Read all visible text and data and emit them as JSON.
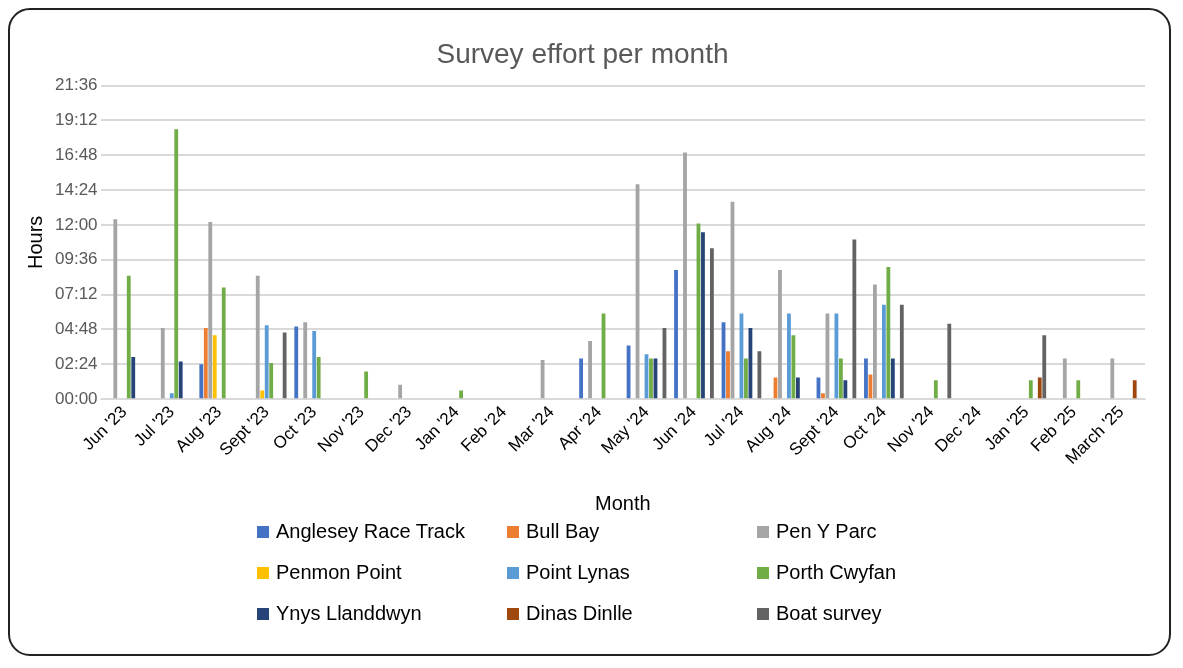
{
  "chart_data": {
    "type": "bar",
    "title": "Survey effort per month",
    "xlabel": "Month",
    "ylabel": "Hours",
    "categories": [
      "Jun '23",
      "Jul '23",
      "Aug '23",
      "Sept '23",
      "Oct '23",
      "Nov '23",
      "Dec '23",
      "Jan '24",
      "Feb '24",
      "Mar '24",
      "Apr '24",
      "May '24",
      "Jun '24",
      "Jul '24",
      "Aug '24",
      "Sept '24",
      "Oct '24",
      "Nov '24",
      "Dec '24",
      "Jan '25",
      "Feb '25",
      "March '25"
    ],
    "ylim": [
      0,
      21.6
    ],
    "yticks": [
      {
        "value": 0,
        "label": "00:00"
      },
      {
        "value": 2.4,
        "label": "02:24"
      },
      {
        "value": 4.8,
        "label": "04:48"
      },
      {
        "value": 7.2,
        "label": "07:12"
      },
      {
        "value": 9.6,
        "label": "09:36"
      },
      {
        "value": 12,
        "label": "12:00"
      },
      {
        "value": 14.4,
        "label": "14:24"
      },
      {
        "value": 16.8,
        "label": "16:48"
      },
      {
        "value": 19.2,
        "label": "19:12"
      },
      {
        "value": 21.6,
        "label": "21:36"
      }
    ],
    "grid": "y",
    "legend": "bottom",
    "series": [
      {
        "name": "Anglesey Race Track",
        "color": "#4472c4",
        "values": [
          null,
          null,
          2.4,
          null,
          5.0,
          null,
          null,
          null,
          null,
          null,
          2.8,
          3.7,
          8.9,
          5.3,
          null,
          1.5,
          2.8,
          null,
          null,
          null,
          null,
          null
        ]
      },
      {
        "name": "Bull Bay",
        "color": "#ed7d31",
        "values": [
          null,
          null,
          4.9,
          null,
          null,
          null,
          null,
          null,
          null,
          null,
          null,
          null,
          null,
          3.3,
          1.5,
          0.4,
          1.7,
          null,
          null,
          null,
          null,
          null
        ]
      },
      {
        "name": "Pen Y Parc",
        "color": "#a5a5a5",
        "values": [
          12.4,
          4.9,
          12.2,
          8.5,
          5.3,
          null,
          1.0,
          null,
          null,
          2.7,
          4.0,
          14.8,
          17.0,
          13.6,
          8.9,
          5.9,
          7.9,
          null,
          null,
          null,
          2.8,
          2.8
        ]
      },
      {
        "name": "Penmon Point",
        "color": "#ffc000",
        "values": [
          null,
          null,
          4.4,
          0.6,
          null,
          null,
          null,
          null,
          null,
          null,
          null,
          null,
          null,
          null,
          null,
          null,
          null,
          null,
          null,
          null,
          null,
          null
        ]
      },
      {
        "name": "Point Lynas",
        "color": "#5b9bd5",
        "values": [
          null,
          0.4,
          null,
          5.1,
          4.7,
          null,
          null,
          null,
          null,
          null,
          null,
          3.1,
          null,
          5.9,
          5.9,
          5.9,
          6.5,
          null,
          null,
          null,
          null,
          null
        ]
      },
      {
        "name": "Porth Cwyfan",
        "color": "#70ad47",
        "values": [
          8.5,
          18.6,
          7.7,
          2.5,
          2.9,
          1.9,
          null,
          0.6,
          null,
          null,
          5.9,
          2.8,
          12.1,
          2.8,
          4.4,
          2.8,
          9.1,
          1.3,
          null,
          1.3,
          1.3,
          null
        ]
      },
      {
        "name": "Ynys Llanddwyn",
        "color": "#264478",
        "values": [
          2.9,
          2.6,
          null,
          null,
          null,
          null,
          null,
          null,
          null,
          null,
          null,
          2.8,
          11.5,
          4.9,
          1.5,
          1.3,
          2.8,
          null,
          null,
          null,
          null,
          null
        ]
      },
      {
        "name": "Dinas Dinlle",
        "color": "#9e480e",
        "values": [
          null,
          null,
          null,
          null,
          null,
          null,
          null,
          null,
          null,
          null,
          null,
          null,
          null,
          null,
          null,
          null,
          null,
          null,
          null,
          1.5,
          null,
          1.3
        ]
      },
      {
        "name": "Boat survey",
        "color": "#636363",
        "values": [
          null,
          null,
          null,
          4.6,
          null,
          null,
          null,
          null,
          null,
          null,
          null,
          4.9,
          10.4,
          3.3,
          null,
          11.0,
          6.5,
          5.2,
          null,
          4.4,
          null,
          null
        ]
      }
    ]
  }
}
